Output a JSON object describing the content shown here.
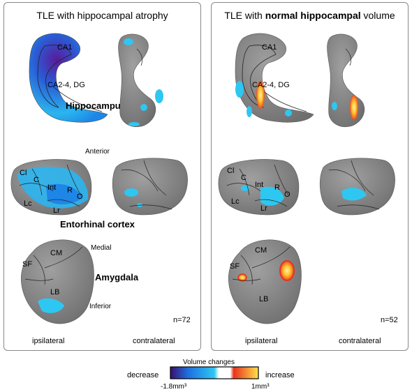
{
  "left_panel": {
    "title": "TLE with hippocampal atrophy",
    "n": "n=72",
    "ipsilateral": "ipsilateral",
    "contralateral": "contralateral"
  },
  "right_panel": {
    "title_pre": "TLE with ",
    "title_bold": "normal hippocampal",
    "title_post": " volume",
    "n": "n=52",
    "ipsilateral": "ipsilateral",
    "contralateral": "contralateral"
  },
  "structures": {
    "hippocampus": "Hippocampus",
    "entorhinal": "Entorhinal cortex",
    "amygdala": "Amygdala"
  },
  "directions": {
    "anterior": "Anterior",
    "medial": "Medial",
    "inferior": "Inferior"
  },
  "subfields": {
    "ca1": "CA1",
    "ca24dg": "CA2-4, DG",
    "cl": "Cl",
    "c": "C",
    "int": "Int",
    "r": "R",
    "o": "O",
    "lc": "Lc",
    "lr": "Lr",
    "cm": "CM",
    "sf": "SF",
    "lb": "LB"
  },
  "legend": {
    "title": "Volume changes",
    "decrease": "decrease",
    "increase": "increase",
    "min": "-1.8mm³",
    "max": "1mm³"
  },
  "colors": {
    "surface": "#8a8a8a",
    "decrease_dark": "#3a0f6e",
    "decrease_blue": "#1e6fe0",
    "decrease_cyan": "#2ec7f2",
    "increase_red": "#e8321e",
    "increase_yellow": "#ffe24a"
  }
}
